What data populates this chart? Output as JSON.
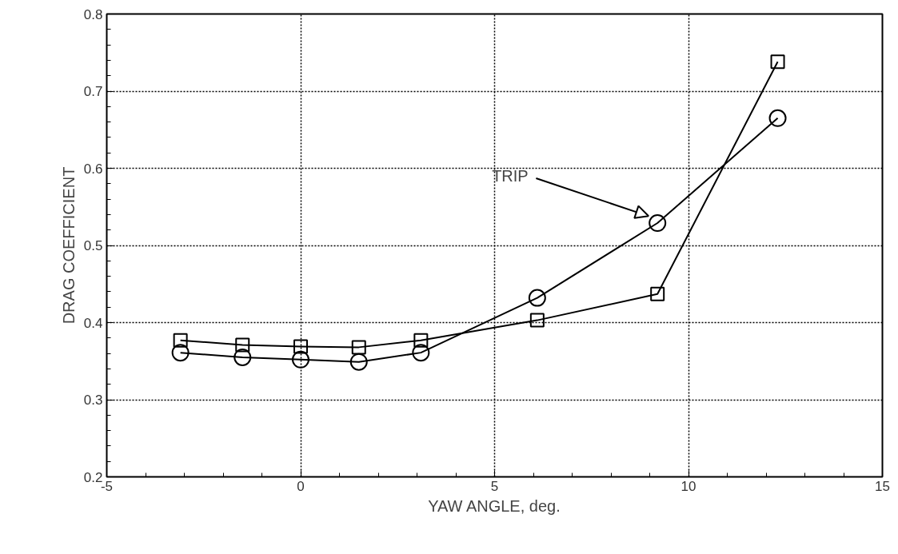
{
  "chart_data": {
    "type": "line",
    "xlabel": "YAW ANGLE, deg.",
    "ylabel": "DRAG COEFFICIENT",
    "x": [
      -3.1,
      -1.5,
      0,
      1.5,
      3.1,
      6.1,
      9.2,
      12.3
    ],
    "series": [
      {
        "color": "#000000",
        "marker": "square",
        "values": [
          0.377,
          0.371,
          0.369,
          0.368,
          0.377,
          0.403,
          0.437,
          0.738
        ]
      },
      {
        "color": "#000000",
        "marker": "circle",
        "values": [
          0.361,
          0.355,
          0.352,
          0.349,
          0.361,
          0.432,
          0.529,
          0.665
        ]
      }
    ],
    "xlim": [
      -5,
      15
    ],
    "ylim": [
      0.2,
      0.8
    ],
    "xticks": [
      -5,
      0,
      5,
      10,
      15
    ],
    "yticks": [
      0.2,
      0.3,
      0.4,
      0.5,
      0.6,
      0.7,
      0.8
    ],
    "grid": true,
    "line_style": "solid",
    "annotations": [
      {
        "text": "TRIP",
        "x": 8.97,
        "y": 0.538
      }
    ]
  }
}
